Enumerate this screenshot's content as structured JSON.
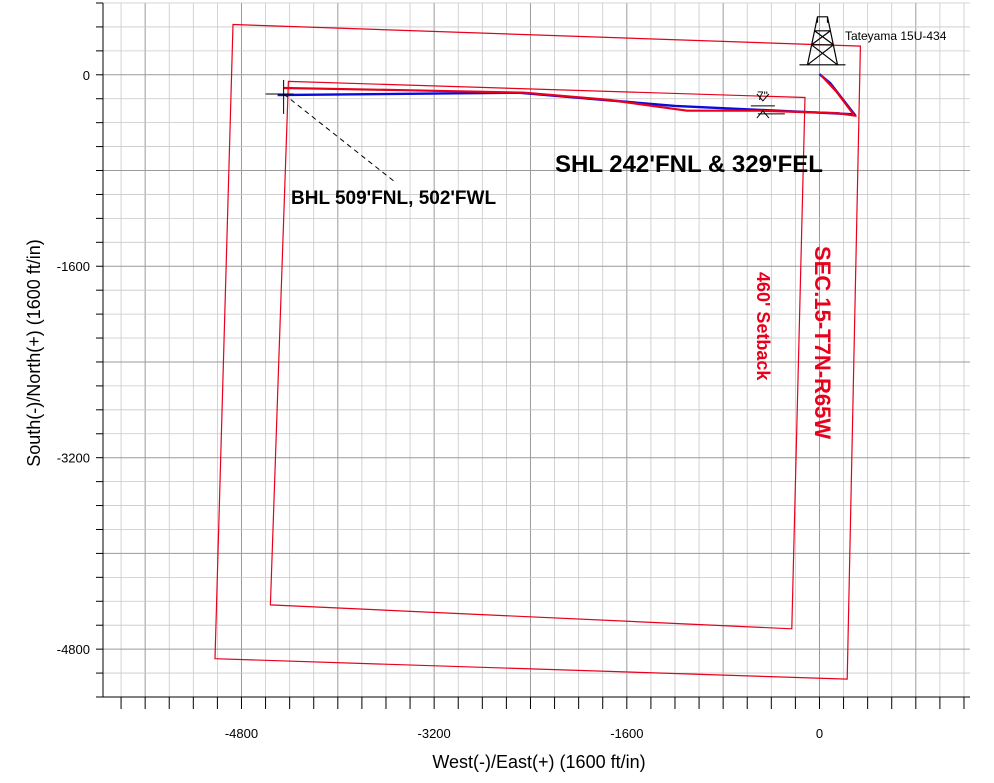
{
  "chart_data": {
    "type": "line",
    "title": "",
    "xlabel": "West(-)/East(+) (1600 ft/in)",
    "ylabel": "South(-)/North(+) (1600 ft/in)",
    "xlim": [
      -5950,
      1250
    ],
    "ylim": [
      -5200,
      600
    ],
    "x_ticks": [
      -4800,
      -3200,
      -1600,
      0
    ],
    "y_ticks": [
      0,
      -1600,
      -3200,
      -4800
    ],
    "grid": true,
    "colors": {
      "section": "#e8001c",
      "plan": "#0a0adc",
      "actual": "#e8001c",
      "grid": "#c8c8c8"
    },
    "series": [
      {
        "kind": "polygon",
        "points": [
          [
            -4870,
            420
          ],
          [
            340,
            240
          ],
          [
            230,
            -5050
          ],
          [
            -5020,
            -4880
          ]
        ]
      },
      {
        "kind": "polygon",
        "points": [
          [
            -4410,
            -55
          ],
          [
            -120,
            -190
          ],
          [
            -230,
            -4630
          ],
          [
            -4560,
            -4430
          ]
        ]
      },
      {
        "kind": "path",
        "points": [
          [
            0,
            5
          ],
          [
            90,
            -70
          ],
          [
            290,
            -330
          ],
          [
            -1200,
            -260
          ],
          [
            -2500,
            -150
          ],
          [
            -4500,
            -170
          ]
        ]
      },
      {
        "kind": "path",
        "points": [
          [
            10,
            0
          ],
          [
            140,
            -140
          ],
          [
            290,
            -340
          ],
          [
            150,
            -320
          ],
          [
            -500,
            -300
          ],
          [
            -1100,
            -300
          ],
          [
            -1750,
            -210
          ],
          [
            -2450,
            -150
          ],
          [
            -3400,
            -130
          ],
          [
            -4450,
            -110
          ]
        ]
      }
    ],
    "annotations": {
      "shl": "SHL 242'FNL & 329'FEL",
      "bhl": "BHL 509'FNL, 502'FWL",
      "well": "Tateyama 15U-434",
      "casing": "7\"",
      "section": "SEC.15-T7N-R65W",
      "setback": "460' Setback"
    }
  }
}
